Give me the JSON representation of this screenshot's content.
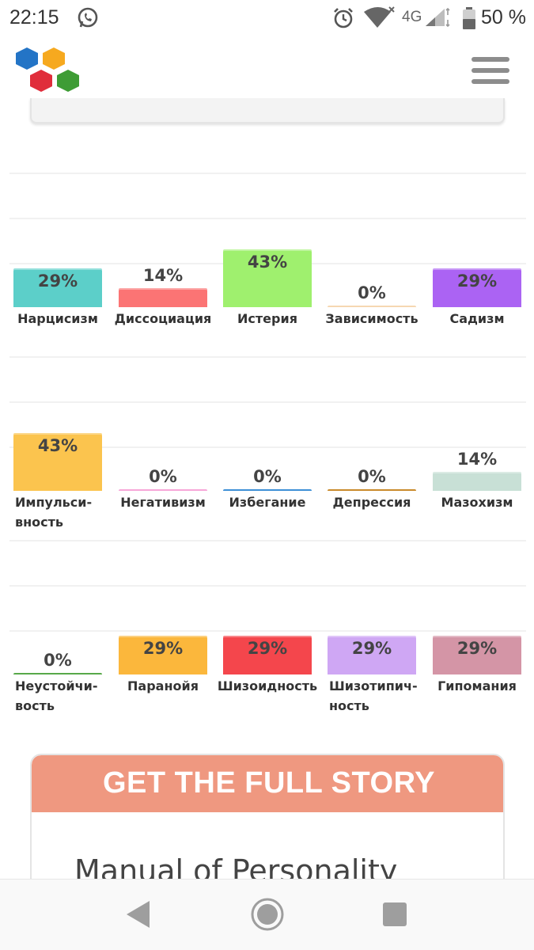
{
  "status_bar": {
    "time": "22:15",
    "network": "4G",
    "battery": "50 %",
    "icons": [
      "whatsapp-icon",
      "alarm-icon",
      "wifi-icon",
      "signal-icon",
      "battery-icon"
    ]
  },
  "header": {
    "logo": "hexagon-logo",
    "menu_icon": "hamburger-menu-icon"
  },
  "chart_data": {
    "type": "bar",
    "ylim": [
      0,
      100
    ],
    "value_suffix": "%",
    "rows": [
      {
        "categories": [
          "Нарцисизм",
          "Диссоциация",
          "Истерия",
          "Зависимость",
          "Садизм"
        ],
        "values": [
          29,
          14,
          43,
          0,
          29
        ],
        "colors": [
          "#5ccfc9",
          "#fb7474",
          "#9ff06e",
          "#f6d7b2",
          "#ab63f3"
        ]
      },
      {
        "categories": [
          "Импульси-\nвность",
          "Негативизм",
          "Избегание",
          "Депрессия",
          "Мазохизм"
        ],
        "values": [
          43,
          0,
          0,
          0,
          14
        ],
        "colors": [
          "#fbc44e",
          "#f7a6d8",
          "#3d8fd6",
          "#c98a2b",
          "#c8e0d6"
        ]
      },
      {
        "categories": [
          "Неустойчи-\nвость",
          "Паранойя",
          "Шизоидность",
          "Шизотипич-\nность",
          "Гипомания"
        ],
        "values": [
          0,
          29,
          29,
          29,
          29
        ],
        "colors": [
          "#58a94a",
          "#fbb73c",
          "#f4464c",
          "#cfa7f4",
          "#d495a6"
        ]
      }
    ]
  },
  "cta": {
    "title": "GET THE FULL STORY",
    "subtitle": "Manual of Personality"
  },
  "navbar": {
    "icons": [
      "back-icon",
      "home-icon",
      "recents-icon"
    ]
  }
}
